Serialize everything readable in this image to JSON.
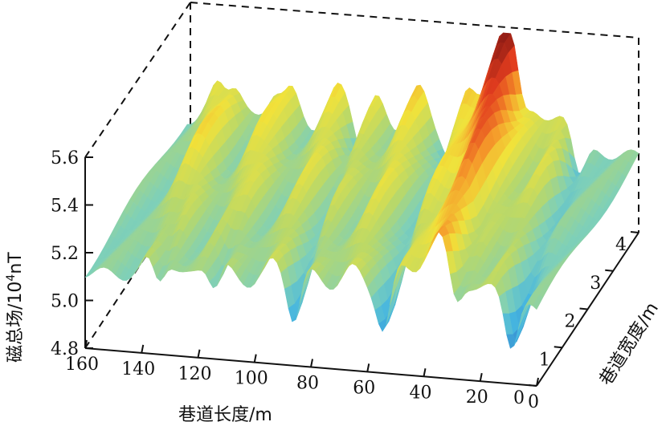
{
  "chart_data": {
    "type": "surface3d",
    "title": "",
    "xlabel": "巷道长度/m",
    "ylabel": "巷道宽度/m",
    "zlabel_main": "磁总场/10",
    "zlabel_sup": "4",
    "zlabel_unit": "nT",
    "x_ticks": [
      "0",
      "20",
      "40",
      "60",
      "80",
      "100",
      "120",
      "140",
      "160"
    ],
    "y_ticks": [
      "0",
      "1",
      "2",
      "3",
      "4"
    ],
    "z_ticks": [
      "4.8",
      "5.0",
      "5.2",
      "5.4",
      "5.6"
    ],
    "xlim": [
      0,
      160
    ],
    "ylim": [
      0,
      4
    ],
    "zlim": [
      4.8,
      5.6
    ],
    "colormap": "jet",
    "colorbar_colors": [
      "#1f3d9e",
      "#2f79c8",
      "#46b6e0",
      "#7fd0b8",
      "#b8d86a",
      "#f1e23a",
      "#f59a2a",
      "#e23c1e",
      "#8b1a14"
    ],
    "ridges": [
      {
        "x": 20,
        "y_start": 3.0,
        "y_end": 4.0,
        "z_peak": 5.28
      },
      {
        "x": 40,
        "y_start": 3.5,
        "y_end": 4.0,
        "z_peak": 5.62
      },
      {
        "x": 55,
        "y_start": 2.5,
        "y_end": 4.0,
        "z_peak": 5.3
      },
      {
        "x": 72,
        "y_start": 2.5,
        "y_end": 4.0,
        "z_peak": 5.32
      },
      {
        "x": 88,
        "y_start": 2.5,
        "y_end": 4.0,
        "z_peak": 5.28
      },
      {
        "x": 100,
        "y_start": 2.5,
        "y_end": 4.0,
        "z_peak": 5.3
      },
      {
        "x": 120,
        "y_start": 2.5,
        "y_end": 4.0,
        "z_peak": 5.4
      },
      {
        "x": 140,
        "y_start": 2.5,
        "y_end": 4.0,
        "z_peak": 5.42
      }
    ],
    "valleys": [
      {
        "x": 15,
        "z_min": 4.92
      },
      {
        "x": 35,
        "z_min": 4.95
      },
      {
        "x": 60,
        "z_min": 4.95
      },
      {
        "x": 92,
        "z_min": 4.94
      },
      {
        "x": 120,
        "z_min": 4.96
      },
      {
        "x": 140,
        "z_min": 4.95
      }
    ]
  }
}
